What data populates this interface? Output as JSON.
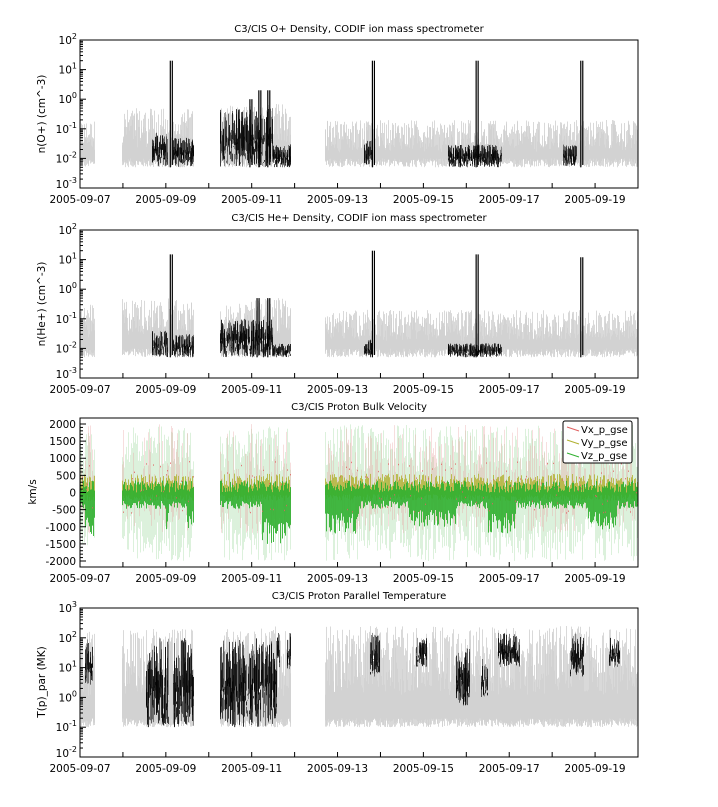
{
  "chart_data": [
    {
      "type": "scatter",
      "title": "C3/CIS  O+ Density, CODIF ion mass spectrometer",
      "ylabel": "n(O+) (cm^-3)",
      "yscale": "log",
      "ylim": [
        0.001,
        100
      ],
      "ytick_exponents": [
        -3,
        -2,
        -1,
        0,
        1,
        2
      ],
      "xlim": [
        "2005-09-07",
        "2005-09-20"
      ],
      "xtick_labels": [
        "2005-09-07",
        "2005-09-09",
        "2005-09-11",
        "2005-09-13",
        "2005-09-15",
        "2005-09-17",
        "2005-09-19"
      ],
      "color": "#000000",
      "sparse_color": "#d0d0d0",
      "data_intervals": [
        [
          "2005-09-07T00:00",
          "2005-09-07T08:30"
        ],
        [
          "2005-09-07T23:30",
          "2005-09-09T15:30"
        ],
        [
          "2005-09-10T06:30",
          "2005-09-11T22:00"
        ],
        [
          "2005-09-12T17:00",
          "2005-09-20T00:00"
        ]
      ],
      "value_floor": 0.005,
      "sparse_max": [
        0.2,
        0.5,
        0.7,
        0.2
      ],
      "dense_intervals": [
        {
          "start": "2005-09-08T16:00",
          "end": "2005-09-09T01:00",
          "max": 0.08
        },
        {
          "start": "2005-09-09T04:00",
          "end": "2005-09-09T15:30",
          "max": 0.05
        },
        {
          "start": "2005-09-10T06:30",
          "end": "2005-09-11T12:00",
          "max": 0.5
        },
        {
          "start": "2005-09-11T12:00",
          "end": "2005-09-11T22:00",
          "max": 0.03
        },
        {
          "start": "2005-09-13T15:00",
          "end": "2005-09-13T20:00",
          "max": 0.05
        },
        {
          "start": "2005-09-15T14:00",
          "end": "2005-09-16T20:00",
          "max": 0.03
        },
        {
          "start": "2005-09-18T06:00",
          "end": "2005-09-18T14:00",
          "max": 0.03
        }
      ],
      "spikes": [
        {
          "time": "2005-09-09T02:30",
          "value": 20
        },
        {
          "time": "2005-09-10T23:00",
          "value": 1.0
        },
        {
          "time": "2005-09-11T04:00",
          "value": 2.0
        },
        {
          "time": "2005-09-11T09:00",
          "value": 2.0
        },
        {
          "time": "2005-09-13T19:30",
          "value": 20
        },
        {
          "time": "2005-09-16T05:30",
          "value": 20
        },
        {
          "time": "2005-09-18T16:00",
          "value": 20
        }
      ]
    },
    {
      "type": "scatter",
      "title": "C3/CIS  He+ Density, CODIF ion mass spectrometer",
      "ylabel": "n(He+) (cm^-3)",
      "yscale": "log",
      "ylim": [
        0.001,
        100
      ],
      "ytick_exponents": [
        -3,
        -2,
        -1,
        0,
        1,
        2
      ],
      "xlim": [
        "2005-09-07",
        "2005-09-20"
      ],
      "xtick_labels": [
        "2005-09-07",
        "2005-09-09",
        "2005-09-11",
        "2005-09-13",
        "2005-09-15",
        "2005-09-17",
        "2005-09-19"
      ],
      "color": "#000000",
      "sparse_color": "#d0d0d0",
      "data_intervals": [
        [
          "2005-09-07T00:00",
          "2005-09-07T08:30"
        ],
        [
          "2005-09-07T23:30",
          "2005-09-09T15:30"
        ],
        [
          "2005-09-10T06:30",
          "2005-09-11T22:00"
        ],
        [
          "2005-09-12T17:00",
          "2005-09-20T00:00"
        ]
      ],
      "value_floor": 0.005,
      "sparse_max": [
        0.3,
        0.5,
        0.5,
        0.2
      ],
      "dense_intervals": [
        {
          "start": "2005-09-08T16:00",
          "end": "2005-09-09T01:00",
          "max": 0.04
        },
        {
          "start": "2005-09-09T04:00",
          "end": "2005-09-09T15:30",
          "max": 0.03
        },
        {
          "start": "2005-09-10T06:30",
          "end": "2005-09-11T12:00",
          "max": 0.1
        },
        {
          "start": "2005-09-11T12:00",
          "end": "2005-09-11T22:00",
          "max": 0.015
        },
        {
          "start": "2005-09-13T15:00",
          "end": "2005-09-13T20:00",
          "max": 0.02
        },
        {
          "start": "2005-09-15T14:00",
          "end": "2005-09-16T20:00",
          "max": 0.015
        }
      ],
      "spikes": [
        {
          "time": "2005-09-09T02:30",
          "value": 15
        },
        {
          "time": "2005-09-11T03:00",
          "value": 0.5
        },
        {
          "time": "2005-09-11T09:00",
          "value": 0.5
        },
        {
          "time": "2005-09-13T19:30",
          "value": 20
        },
        {
          "time": "2005-09-16T05:30",
          "value": 15
        },
        {
          "time": "2005-09-18T16:00",
          "value": 12
        }
      ]
    },
    {
      "type": "scatter",
      "title": "C3/CIS  Proton Bulk Velocity",
      "ylabel": "km/s",
      "yscale": "linear",
      "ylim": [
        -2175,
        2175
      ],
      "yticks": [
        -2000,
        -1500,
        -1000,
        -500,
        0,
        500,
        1000,
        1500,
        2000
      ],
      "xlim": [
        "2005-09-07",
        "2005-09-20"
      ],
      "xtick_labels": [
        "2005-09-07",
        "2005-09-09",
        "2005-09-11",
        "2005-09-13",
        "2005-09-15",
        "2005-09-17",
        "2005-09-19"
      ],
      "legend_position": "top-right",
      "series": [
        {
          "name": "Vx_p_gse",
          "color": "#e06060"
        },
        {
          "name": "Vy_p_gse",
          "color": "#b0b030"
        },
        {
          "name": "Vz_p_gse",
          "color": "#30b030"
        }
      ],
      "data_intervals": [
        [
          "2005-09-07T00:00",
          "2005-09-07T08:30"
        ],
        [
          "2005-09-07T23:30",
          "2005-09-09T15:30"
        ],
        [
          "2005-09-10T06:30",
          "2005-09-11T22:00"
        ],
        [
          "2005-09-12T17:00",
          "2005-09-20T00:00"
        ]
      ],
      "scatter_extent": 2000,
      "vz_core_range": [
        -400,
        350
      ],
      "vz_deep_excursions": [
        {
          "start": "2005-09-07T03:00",
          "end": "2005-09-07T08:30",
          "min": -1300
        },
        {
          "start": "2005-09-09T00:00",
          "end": "2005-09-09T02:00",
          "min": -1100
        },
        {
          "start": "2005-09-09T12:00",
          "end": "2005-09-09T15:30",
          "min": -1100
        },
        {
          "start": "2005-09-11T06:00",
          "end": "2005-09-11T22:00",
          "min": -1500
        },
        {
          "start": "2005-09-12T17:00",
          "end": "2005-09-13T12:00",
          "min": -1200
        },
        {
          "start": "2005-09-14T16:00",
          "end": "2005-09-15T18:00",
          "min": -1000
        },
        {
          "start": "2005-09-16T12:00",
          "end": "2005-09-17T04:00",
          "min": -1200
        },
        {
          "start": "2005-09-18T20:00",
          "end": "2005-09-19T12:00",
          "min": -1100
        }
      ]
    },
    {
      "type": "scatter",
      "title": "C3/CIS  Proton Parallel Temperature",
      "ylabel": "T(p)_par (MK)",
      "yscale": "log",
      "ylim": [
        0.01,
        1000
      ],
      "ytick_exponents": [
        -2,
        -1,
        0,
        1,
        2,
        3
      ],
      "xlim": [
        "2005-09-07",
        "2005-09-20"
      ],
      "xtick_labels": [
        "2005-09-07",
        "2005-09-09",
        "2005-09-11",
        "2005-09-13",
        "2005-09-15",
        "2005-09-17",
        "2005-09-19"
      ],
      "color": "#000000",
      "sparse_color": "#d0d0d0",
      "data_intervals": [
        [
          "2005-09-07T00:00",
          "2005-09-07T08:30"
        ],
        [
          "2005-09-07T23:30",
          "2005-09-09T15:30"
        ],
        [
          "2005-09-10T06:30",
          "2005-09-11T22:00"
        ],
        [
          "2005-09-12T17:00",
          "2005-09-20T00:00"
        ]
      ],
      "value_floor": 0.1,
      "sparse_max": [
        200,
        200,
        250,
        250
      ],
      "dense_intervals": [
        {
          "start": "2005-09-07T03:00",
          "end": "2005-09-07T07:00",
          "min": 2,
          "max": 100
        },
        {
          "start": "2005-09-08T13:00",
          "end": "2005-09-09T02:00",
          "min": 0.1,
          "max": 100
        },
        {
          "start": "2005-09-09T04:00",
          "end": "2005-09-09T15:30",
          "min": 0.1,
          "max": 100
        },
        {
          "start": "2005-09-10T06:30",
          "end": "2005-09-11T14:00",
          "min": 0.1,
          "max": 100
        },
        {
          "start": "2005-09-11T14:00",
          "end": "2005-09-11T16:00",
          "min": 10,
          "max": 150
        },
        {
          "start": "2005-09-11T20:00",
          "end": "2005-09-11T22:00",
          "min": 5,
          "max": 150
        },
        {
          "start": "2005-09-13T18:00",
          "end": "2005-09-14T00:00",
          "min": 5,
          "max": 150
        },
        {
          "start": "2005-09-14T20:00",
          "end": "2005-09-15T02:00",
          "min": 10,
          "max": 100
        },
        {
          "start": "2005-09-15T18:00",
          "end": "2005-09-16T02:00",
          "min": 0.5,
          "max": 50
        },
        {
          "start": "2005-09-16T08:00",
          "end": "2005-09-16T12:00",
          "min": 1,
          "max": 20
        },
        {
          "start": "2005-09-16T18:00",
          "end": "2005-09-17T06:00",
          "min": 10,
          "max": 150
        },
        {
          "start": "2005-09-18T10:00",
          "end": "2005-09-18T18:00",
          "min": 5,
          "max": 150
        },
        {
          "start": "2005-09-19T08:00",
          "end": "2005-09-19T14:00",
          "min": 10,
          "max": 100
        }
      ],
      "spikes": []
    }
  ]
}
